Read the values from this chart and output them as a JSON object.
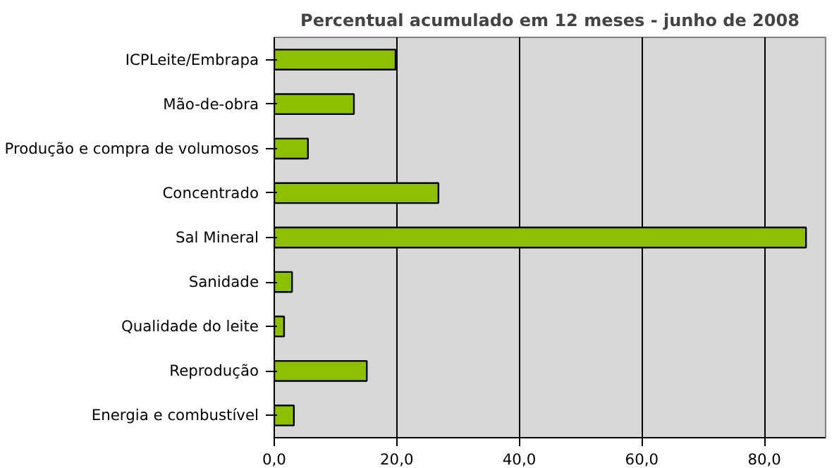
{
  "chart_data": {
    "type": "bar",
    "orientation": "horizontal",
    "title": "Percentual acumulado em 12 meses - junho de 2008",
    "categories": [
      "ICPLeite/Embrapa",
      "Mão-de-obra",
      "Produção e compra de volumosos",
      "Concentrado",
      "Sal Mineral",
      "Sanidade",
      "Qualidade do leite",
      "Reprodução",
      "Energia e combustível"
    ],
    "values": [
      19.8,
      13.0,
      5.5,
      26.8,
      86.8,
      2.9,
      1.6,
      15.1,
      3.2
    ],
    "color": "#8cc000",
    "xlim": [
      0,
      90
    ],
    "xticks": [
      {
        "value": 0,
        "label": "0,0"
      },
      {
        "value": 20,
        "label": "20,0"
      },
      {
        "value": 40,
        "label": "40,0"
      },
      {
        "value": 60,
        "label": "60,0"
      },
      {
        "value": 80,
        "label": "80,0"
      }
    ],
    "grid": "x"
  }
}
